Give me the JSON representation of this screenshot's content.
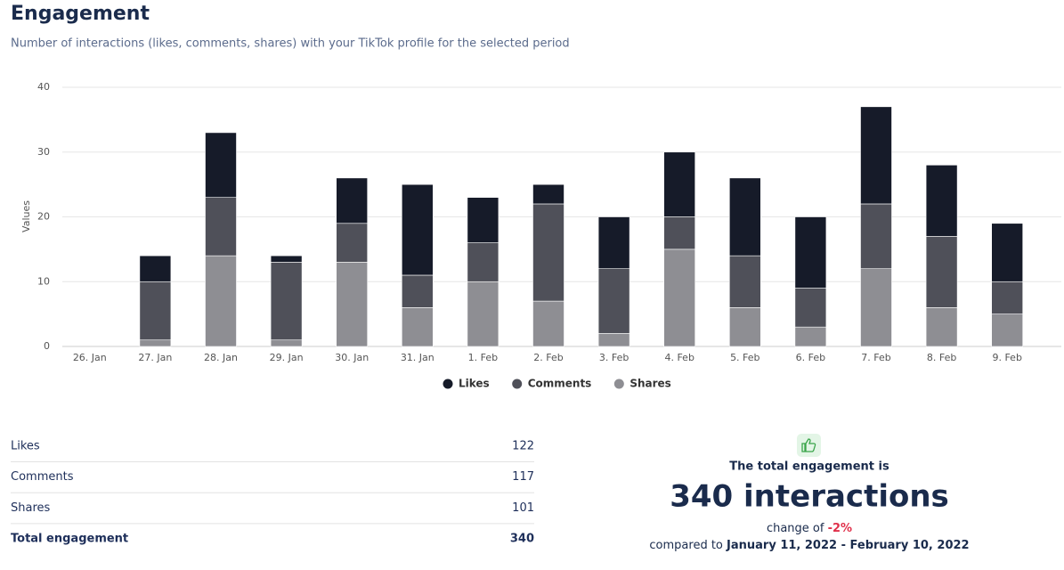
{
  "header": {
    "title": "Engagement",
    "subtitle": "Number of interactions (likes, comments, shares) with your TikTok profile for the selected period"
  },
  "chart_data": {
    "type": "bar",
    "stacked": true,
    "y_label": "Values",
    "categories": [
      "26. Jan",
      "27. Jan",
      "28. Jan",
      "29. Jan",
      "30. Jan",
      "31. Jan",
      "1. Feb",
      "2. Feb",
      "3. Feb",
      "4. Feb",
      "5. Feb",
      "6. Feb",
      "7. Feb",
      "8. Feb",
      "9. Feb"
    ],
    "series": [
      {
        "name": "Likes",
        "color": "#161b29",
        "values": [
          0,
          4,
          10,
          1,
          7,
          14,
          7,
          3,
          8,
          10,
          12,
          11,
          15,
          11,
          9
        ]
      },
      {
        "name": "Comments",
        "color": "#4f5059",
        "values": [
          0,
          9,
          9,
          12,
          6,
          5,
          6,
          15,
          10,
          5,
          8,
          6,
          10,
          11,
          5
        ]
      },
      {
        "name": "Shares",
        "color": "#8e8e93",
        "values": [
          0,
          1,
          14,
          1,
          13,
          6,
          10,
          7,
          2,
          15,
          6,
          3,
          12,
          6,
          5
        ]
      }
    ],
    "ylim": [
      0,
      40
    ],
    "yticks": [
      0,
      10,
      20,
      30,
      40
    ],
    "grid": true,
    "legend": "bottom"
  },
  "summary": {
    "rows": [
      [
        "Likes",
        122
      ],
      [
        "Comments",
        117
      ],
      [
        "Shares",
        101
      ],
      [
        "Total engagement",
        340
      ]
    ]
  },
  "total": {
    "lead": "The total engagement is",
    "headline": "340 interactions",
    "change_text": "change of",
    "change": "-2%",
    "compared_text": "compared to",
    "period": "January 11, 2022 - February 10, 2022"
  }
}
